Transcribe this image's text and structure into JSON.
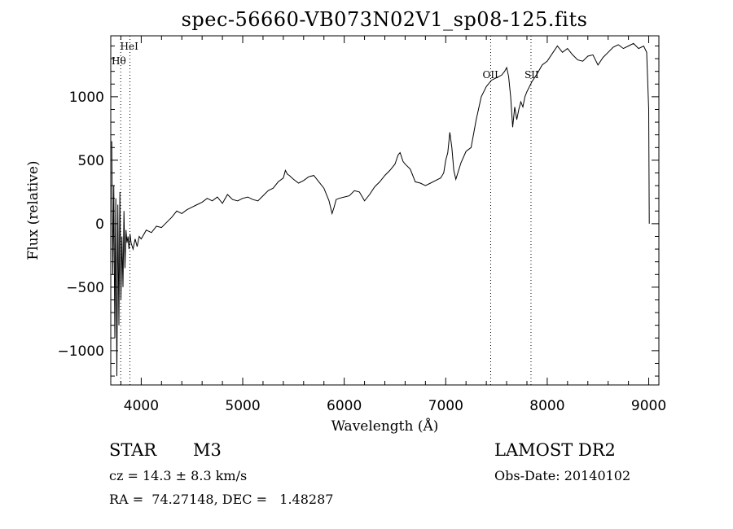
{
  "chart_data": {
    "type": "line",
    "title": "spec-56660-VB073N02V1_sp08-125.fits",
    "xlabel": "Wavelength (Å)",
    "ylabel": "Flux (relative)",
    "xlim": [
      3700,
      9100
    ],
    "ylim": [
      -1270,
      1480
    ],
    "xticks": [
      4000,
      5000,
      6000,
      7000,
      8000,
      9000
    ],
    "yticks": [
      -1000,
      -500,
      0,
      500,
      1000
    ],
    "line_color": "#000000",
    "series": [
      {
        "x": [
          3710,
          3720,
          3730,
          3740,
          3750,
          3760,
          3770,
          3780,
          3790,
          3800,
          3810,
          3820,
          3830,
          3840,
          3850,
          3860,
          3870,
          3880,
          3890,
          3900,
          3920,
          3940,
          3960,
          3980,
          4000,
          4050,
          4100,
          4150,
          4200,
          4250,
          4300,
          4350,
          4400,
          4450,
          4500,
          4550,
          4600,
          4650,
          4700,
          4750,
          4800,
          4850,
          4900,
          4950,
          5000,
          5050,
          5100,
          5150,
          5200,
          5250,
          5300,
          5350,
          5400,
          5420,
          5440,
          5460,
          5500,
          5550,
          5600,
          5650,
          5700,
          5750,
          5800,
          5850,
          5880,
          5900,
          5920,
          5950,
          6000,
          6050,
          6100,
          6150,
          6200,
          6250,
          6300,
          6350,
          6400,
          6450,
          6500,
          6530,
          6550,
          6580,
          6600,
          6650,
          6700,
          6750,
          6800,
          6850,
          6900,
          6950,
          6980,
          7000,
          7020,
          7040,
          7060,
          7080,
          7100,
          7150,
          7200,
          7250,
          7300,
          7350,
          7400,
          7450,
          7500,
          7550,
          7580,
          7600,
          7620,
          7640,
          7660,
          7680,
          7700,
          7720,
          7740,
          7760,
          7780,
          7800,
          7850,
          7900,
          7950,
          8000,
          8050,
          8100,
          8150,
          8200,
          8250,
          8300,
          8350,
          8400,
          8450,
          8500,
          8550,
          8600,
          8650,
          8700,
          8750,
          8800,
          8850,
          8900,
          8950,
          8980,
          9000,
          9005
        ],
        "y": [
          650,
          -400,
          300,
          -900,
          200,
          -1200,
          150,
          -800,
          250,
          -600,
          -100,
          -500,
          100,
          -350,
          -50,
          -150,
          -100,
          -200,
          -80,
          -150,
          -200,
          -120,
          -180,
          -100,
          -120,
          -50,
          -70,
          -20,
          -30,
          10,
          50,
          100,
          80,
          110,
          130,
          150,
          170,
          200,
          180,
          210,
          160,
          230,
          190,
          180,
          200,
          210,
          190,
          180,
          220,
          260,
          280,
          330,
          360,
          420,
          390,
          380,
          350,
          320,
          340,
          370,
          380,
          330,
          280,
          180,
          80,
          130,
          190,
          200,
          210,
          220,
          260,
          250,
          180,
          230,
          290,
          330,
          380,
          420,
          470,
          540,
          560,
          490,
          470,
          430,
          330,
          320,
          300,
          320,
          340,
          360,
          400,
          500,
          560,
          720,
          600,
          420,
          350,
          480,
          570,
          600,
          820,
          1000,
          1080,
          1130,
          1150,
          1170,
          1200,
          1230,
          1160,
          1000,
          760,
          920,
          820,
          900,
          960,
          920,
          1000,
          1040,
          1120,
          1180,
          1250,
          1280,
          1340,
          1400,
          1350,
          1380,
          1330,
          1290,
          1280,
          1320,
          1330,
          1250,
          1310,
          1350,
          1390,
          1410,
          1380,
          1400,
          1420,
          1380,
          1400,
          1350,
          900,
          0
        ]
      }
    ],
    "reference_lines": [
      {
        "x": 3889,
        "label": "HeI"
      },
      {
        "x": 3798,
        "label": "Hθ"
      },
      {
        "x": 7443,
        "label": "OII"
      },
      {
        "x": 7840,
        "label": "SII"
      }
    ]
  },
  "info": {
    "object_class": "STAR",
    "subclass": "M3",
    "survey": "LAMOST DR2",
    "cz": "cz = 14.3 ± 8.3 km/s",
    "obs_date": "Obs-Date: 20140102",
    "coords": "RA =  74.27148, DEC =   1.48287"
  }
}
